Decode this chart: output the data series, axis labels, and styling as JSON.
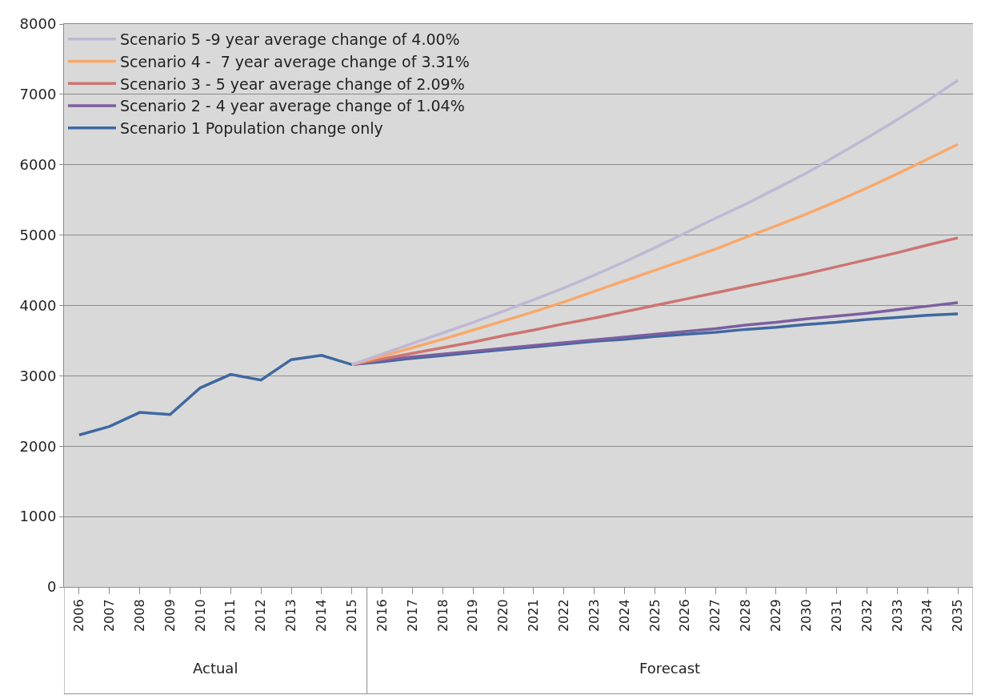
{
  "chart_data": {
    "type": "line",
    "categories": [
      "2006",
      "2007",
      "2008",
      "2009",
      "2010",
      "2011",
      "2012",
      "2013",
      "2014",
      "2015",
      "2016",
      "2017",
      "2018",
      "2019",
      "2020",
      "2021",
      "2022",
      "2023",
      "2024",
      "2025",
      "2026",
      "2027",
      "2028",
      "2029",
      "2030",
      "2031",
      "2032",
      "2033",
      "2034",
      "2035"
    ],
    "series": [
      {
        "name": "Scenario 1 Population change only",
        "color": "#3f68a0",
        "values": [
          2160,
          2280,
          2480,
          2450,
          2830,
          3020,
          2940,
          3230,
          3290,
          3160,
          3200,
          3250,
          3290,
          3330,
          3370,
          3410,
          3450,
          3490,
          3520,
          3560,
          3590,
          3620,
          3660,
          3690,
          3730,
          3760,
          3800,
          3830,
          3860,
          3880
        ]
      },
      {
        "name": "Scenario 2 - 4 year average change of 1.04%",
        "color": "#7c5fa0",
        "values": [
          null,
          null,
          null,
          null,
          null,
          null,
          null,
          null,
          null,
          3160,
          3220,
          3270,
          3310,
          3350,
          3390,
          3430,
          3470,
          3510,
          3550,
          3590,
          3630,
          3670,
          3720,
          3760,
          3810,
          3850,
          3890,
          3940,
          3990,
          4040
        ]
      },
      {
        "name": "Scenario 3 - 5 year average change of 2.09%",
        "color": "#cd7472",
        "values": [
          null,
          null,
          null,
          null,
          null,
          null,
          null,
          null,
          null,
          3160,
          3240,
          3320,
          3400,
          3480,
          3570,
          3650,
          3740,
          3820,
          3910,
          4000,
          4090,
          4180,
          4270,
          4360,
          4450,
          4550,
          4650,
          4750,
          4860,
          4960
        ]
      },
      {
        "name": "Scenario 4 -  7 year average change of 3.31%",
        "color": "#f9a86a",
        "values": [
          null,
          null,
          null,
          null,
          null,
          null,
          null,
          null,
          null,
          3160,
          3280,
          3400,
          3520,
          3650,
          3780,
          3910,
          4050,
          4200,
          4350,
          4500,
          4650,
          4800,
          4970,
          5130,
          5300,
          5480,
          5670,
          5870,
          6080,
          6290
        ]
      },
      {
        "name": "Scenario 5 -9 year average change of 4.00%",
        "color": "#bfb8d4",
        "values": [
          null,
          null,
          null,
          null,
          null,
          null,
          null,
          null,
          null,
          3160,
          3310,
          3460,
          3610,
          3760,
          3920,
          4080,
          4250,
          4430,
          4620,
          4820,
          5030,
          5240,
          5440,
          5660,
          5880,
          6130,
          6380,
          6640,
          6910,
          7200
        ]
      }
    ],
    "ylim": [
      0,
      8000
    ],
    "yticks": [
      0,
      1000,
      2000,
      3000,
      4000,
      5000,
      6000,
      7000,
      8000
    ],
    "grid": "y",
    "legend": "top left",
    "marker": "none",
    "line_style": "solid",
    "annotations": [
      "Actual",
      "Forecast"
    ]
  }
}
